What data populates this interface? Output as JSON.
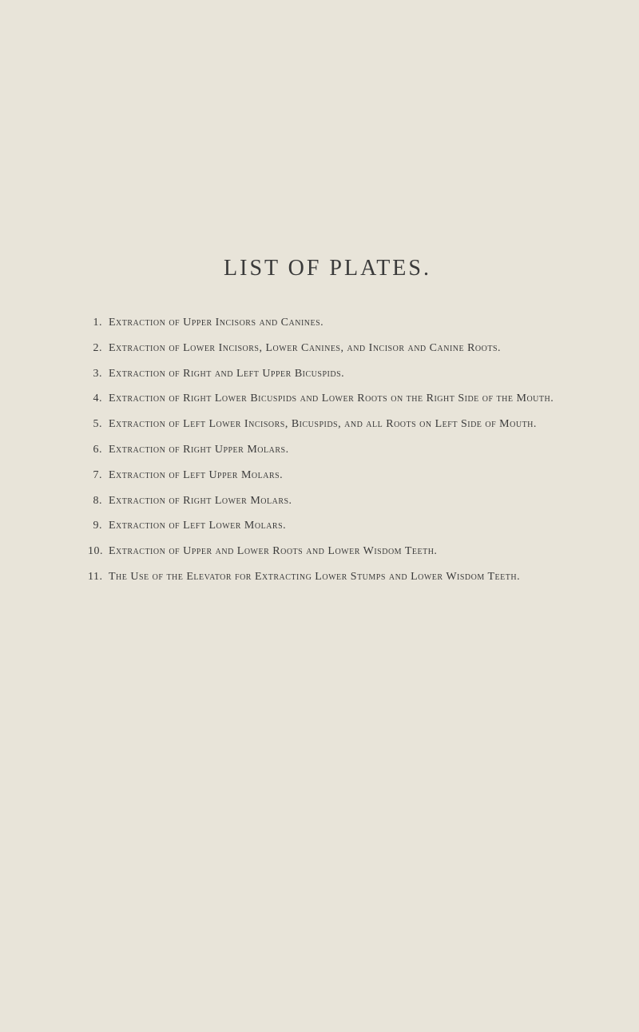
{
  "title": "LIST OF PLATES.",
  "items": [
    {
      "number": "1.",
      "text": "Extraction of Upper Incisors and Canines."
    },
    {
      "number": "2.",
      "text": "Extraction of Lower Incisors, Lower Canines, and Incisor and Canine Roots."
    },
    {
      "number": "3.",
      "text": "Extraction of Right and Left Upper Bicuspids."
    },
    {
      "number": "4.",
      "text": "Extraction of Right Lower Bicuspids and Lower Roots on the Right Side of the Mouth."
    },
    {
      "number": "5.",
      "text": "Extraction of Left Lower Incisors, Bicuspids, and all Roots on Left Side of Mouth."
    },
    {
      "number": "6.",
      "text": "Extraction of Right Upper Molars."
    },
    {
      "number": "7.",
      "text": "Extraction of Left Upper Molars."
    },
    {
      "number": "8.",
      "text": "Extraction of Right Lower Molars."
    },
    {
      "number": "9.",
      "text": "Extraction of Left Lower Molars."
    },
    {
      "number": "10.",
      "text": "Extraction of Upper and Lower Roots and Lower Wisdom Teeth."
    },
    {
      "number": "11.",
      "text": "The Use of the Elevator for Extracting Lower Stumps and Lower Wisdom Teeth."
    }
  ],
  "colors": {
    "background": "#e8e4d9",
    "text": "#3a3a3a"
  },
  "typography": {
    "title_fontsize": 28,
    "body_fontsize": 14,
    "font_family": "Georgia, serif"
  }
}
